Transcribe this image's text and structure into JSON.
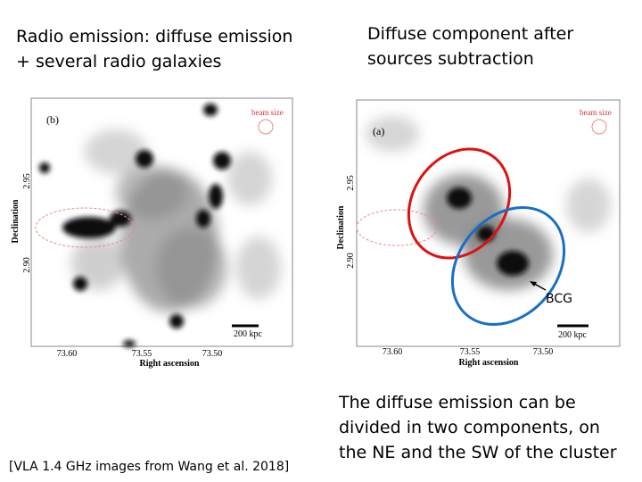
{
  "slide": {
    "left_caption": [
      "Radio emission: diffuse emission",
      "+ several radio galaxies"
    ],
    "right_caption": [
      "Diffuse component after",
      "sources subtraction"
    ],
    "left_panel": {
      "label": "(b)",
      "beam": "beam size",
      "scale": "200 kpc",
      "ylabel": "Declination",
      "xlabel": "Right ascension",
      "yticks": [
        "2.95",
        "2.90"
      ],
      "xticks": [
        "73.60",
        "73.55",
        "73.50"
      ]
    },
    "right_panel": {
      "label": "(a)",
      "beam": "beam size",
      "scale": "200 kpc",
      "ylabel": "Declination",
      "xlabel": "Right ascension",
      "yticks": [
        "2.95",
        "2.90"
      ],
      "xticks": [
        "73.60",
        "73.55",
        "73.50"
      ],
      "annotation": "BCG"
    },
    "conclusion": [
      "The diffuse emission can be",
      "divided in two components, on",
      "the NE and the SW of the cluster"
    ],
    "reference": "[VLA 1.4 GHz images from Wang et al. 2018]"
  }
}
